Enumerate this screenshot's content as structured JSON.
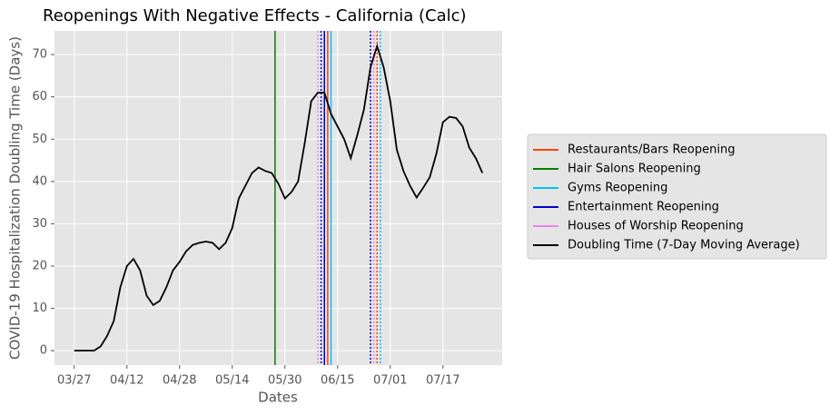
{
  "chart_data": {
    "type": "line",
    "title": "Reopenings With Negative Effects - California (Calc)",
    "x_label": "Dates",
    "y_label": "COVID-19 Hospitalization Doubling Time (Days)",
    "x": [
      "03/27",
      "03/29",
      "03/31",
      "04/02",
      "04/04",
      "04/06",
      "04/08",
      "04/10",
      "04/12",
      "04/14",
      "04/16",
      "04/18",
      "04/20",
      "04/22",
      "04/24",
      "04/26",
      "04/28",
      "04/30",
      "05/02",
      "05/04",
      "05/06",
      "05/08",
      "05/10",
      "05/12",
      "05/14",
      "05/16",
      "05/18",
      "05/20",
      "05/22",
      "05/24",
      "05/26",
      "05/28",
      "05/30",
      "06/01",
      "06/03",
      "06/05",
      "06/07",
      "06/09",
      "06/11",
      "06/13",
      "06/15",
      "06/17",
      "06/19",
      "06/21",
      "06/23",
      "06/25",
      "06/27",
      "06/29",
      "07/01",
      "07/03",
      "07/05",
      "07/07",
      "07/09",
      "07/11",
      "07/13",
      "07/15",
      "07/17",
      "07/19",
      "07/21",
      "07/23",
      "07/25",
      "07/27",
      "07/29"
    ],
    "xlim": [
      "03/21",
      "08/04"
    ],
    "xticks": [
      "03/27",
      "04/12",
      "04/28",
      "05/14",
      "05/30",
      "06/15",
      "07/01",
      "07/17"
    ],
    "ylim": [
      -3.4,
      75.6
    ],
    "yticks": [
      0,
      10,
      20,
      30,
      40,
      50,
      60,
      70
    ],
    "grid": true,
    "legend": "outside-right",
    "series": [
      {
        "name": "Restaurants/Bars Reopening",
        "color": "#ff4500",
        "solid_dates": [
          "06/12"
        ],
        "dotted_dates": [
          "06/27"
        ]
      },
      {
        "name": "Hair Salons Reopening",
        "color": "#008000",
        "solid_dates": [
          "05/27"
        ],
        "dotted_dates": []
      },
      {
        "name": "Gyms Reopening",
        "color": "#00bfff",
        "solid_dates": [
          "06/13"
        ],
        "dotted_dates": [
          "06/28"
        ]
      },
      {
        "name": "Entertainment Reopening",
        "color": "#0000cd",
        "solid_dates": [
          "06/11"
        ],
        "dotted_dates": [
          "06/10",
          "06/25"
        ]
      },
      {
        "name": "Houses of Worship Reopening",
        "color": "#ee82ee",
        "solid_dates": [],
        "dotted_dates": [
          "06/09",
          "06/26"
        ]
      },
      {
        "name": "Doubling Time (7-Day Moving Average)",
        "color": "#000000",
        "values": [
          0,
          0,
          0,
          0,
          1,
          3.5,
          7,
          15,
          20,
          21.7,
          19,
          13,
          10.8,
          11.8,
          15,
          19,
          21,
          23.5,
          25,
          25.5,
          25.8,
          25.5,
          24,
          25.5,
          29,
          36,
          39,
          42,
          43.3,
          42.5,
          42,
          39.5,
          36,
          37.5,
          40,
          49,
          59,
          61,
          61,
          56,
          53,
          50,
          45.5,
          51,
          57,
          67,
          72,
          67,
          59,
          47.5,
          42.5,
          39,
          36.2,
          38.5,
          41,
          46.5,
          54,
          55.3,
          55,
          53,
          48,
          45.5,
          42
        ]
      }
    ]
  }
}
